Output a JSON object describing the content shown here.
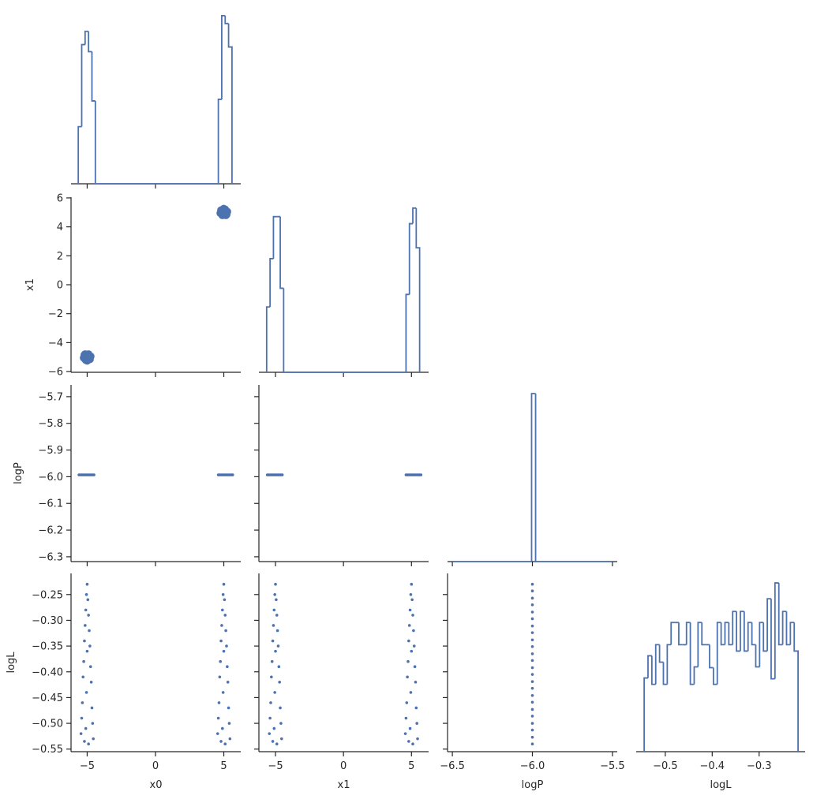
{
  "chart_data": [
    {
      "type": "histogram",
      "color": "#4c72b0",
      "ylim": [
        0,
        225
      ],
      "bins": [
        -5.65,
        -5.4,
        -5.15,
        -4.9,
        -4.65,
        -4.4,
        -4.15,
        -3.9,
        -3.65,
        -3.4,
        -3.15,
        -2.9,
        -2.65,
        -2.4,
        -2.15,
        -1.9,
        -1.65,
        -1.4,
        -1.15,
        -0.9,
        -0.65,
        -0.4,
        -0.15,
        0.1,
        0.35,
        0.6,
        0.85,
        1.1,
        1.35,
        1.6,
        1.85,
        2.1,
        2.35,
        2.6,
        2.85,
        3.1,
        3.35,
        3.6,
        3.85,
        4.1,
        4.35,
        4.6,
        4.85,
        5.1,
        5.35,
        5.6
      ],
      "counts": [
        73,
        178,
        195,
        169,
        106,
        0,
        0,
        0,
        0,
        0,
        0,
        0,
        0,
        0,
        0,
        0,
        0,
        0,
        0,
        0,
        0,
        0,
        0,
        0,
        0,
        0,
        0,
        0,
        0,
        0,
        0,
        0,
        0,
        0,
        0,
        0,
        0,
        0,
        0,
        0,
        0,
        108,
        215,
        205,
        175
      ]
    },
    {
      "type": "scatter",
      "color": "#4c72b0",
      "ylabel": "x1",
      "ylim": [
        -6.05,
        6.05
      ],
      "yticks": [
        {
          "value": -6,
          "label": "−6"
        },
        {
          "value": -4,
          "label": "−4"
        },
        {
          "value": -2,
          "label": "−2"
        },
        0,
        2,
        4,
        6
      ],
      "x": [
        -5.0,
        -5.2,
        -4.8,
        -5.1,
        -4.9,
        -5.25,
        -4.75,
        -5.0,
        -5.15,
        -4.85,
        -5.05,
        -4.95,
        5.0,
        5.2,
        4.8,
        5.1,
        4.9,
        5.25,
        4.75,
        5.0,
        5.15,
        4.85,
        5.05,
        4.95
      ],
      "y": [
        -5.0,
        -4.85,
        -5.15,
        -5.2,
        -4.8,
        -5.05,
        -4.95,
        -5.25,
        -4.8,
        -5.1,
        -4.9,
        -5.05,
        5.0,
        4.85,
        5.15,
        5.2,
        4.8,
        5.05,
        4.95,
        5.25,
        4.8,
        5.1,
        4.9,
        5.05
      ]
    },
    {
      "type": "histogram",
      "color": "#4c72b0",
      "ylim": [
        0,
        225
      ],
      "bins": [
        -5.65,
        -5.4,
        -5.15,
        -4.9,
        -4.65,
        -4.4,
        -4.15,
        -3.9,
        -3.65,
        -3.4,
        -3.15,
        -2.9,
        -2.65,
        -2.4,
        -2.15,
        -1.9,
        -1.65,
        -1.4,
        -1.15,
        -0.9,
        -0.65,
        -0.4,
        -0.15,
        0.1,
        0.35,
        0.6,
        0.85,
        1.1,
        1.35,
        1.6,
        1.85,
        2.1,
        2.35,
        2.6,
        2.85,
        3.1,
        3.35,
        3.6,
        3.85,
        4.1,
        4.35,
        4.6,
        4.85,
        5.1,
        5.35,
        5.6
      ],
      "counts": [
        84,
        146,
        200,
        200,
        108,
        0,
        0,
        0,
        0,
        0,
        0,
        0,
        0,
        0,
        0,
        0,
        0,
        0,
        0,
        0,
        0,
        0,
        0,
        0,
        0,
        0,
        0,
        0,
        0,
        0,
        0,
        0,
        0,
        0,
        0,
        0,
        0,
        0,
        0,
        0,
        0,
        100,
        191,
        211,
        160
      ]
    },
    {
      "type": "scatter",
      "color": "#4c72b0",
      "ylabel": "logP",
      "ylim": [
        -6.318,
        -5.656
      ],
      "yticks": [
        {
          "value": -6.3,
          "label": "−6.3"
        },
        {
          "value": -6.2,
          "label": "−6.2"
        },
        {
          "value": -6.1,
          "label": "−6.1"
        },
        {
          "value": -6.0,
          "label": "−6.0"
        },
        {
          "value": -5.9,
          "label": "−5.9"
        },
        {
          "value": -5.8,
          "label": "−5.8"
        },
        {
          "value": -5.7,
          "label": "−5.7"
        }
      ],
      "x": [
        -5.6,
        -5.5,
        -5.4,
        -5.3,
        -5.2,
        -5.1,
        -5.0,
        -4.9,
        -4.8,
        -4.7,
        -4.6,
        -4.5,
        4.6,
        4.7,
        4.8,
        4.9,
        5.0,
        5.1,
        5.2,
        5.3,
        5.4,
        5.5,
        5.6,
        5.65
      ],
      "y": [
        -5.993,
        -5.993,
        -5.993,
        -5.993,
        -5.993,
        -5.993,
        -5.993,
        -5.993,
        -5.993,
        -5.993,
        -5.993,
        -5.993,
        -5.993,
        -5.993,
        -5.993,
        -5.993,
        -5.993,
        -5.993,
        -5.993,
        -5.993,
        -5.993,
        -5.993,
        -5.993,
        -5.993
      ]
    },
    {
      "type": "scatter",
      "color": "#4c72b0",
      "x": [
        -5.6,
        -5.5,
        -5.4,
        -5.3,
        -5.2,
        -5.1,
        -5.0,
        -4.9,
        -4.8,
        -4.7,
        -4.6,
        -4.5,
        4.6,
        4.7,
        4.8,
        4.9,
        5.0,
        5.1,
        5.2,
        5.3,
        5.4,
        5.5,
        5.6,
        5.7
      ],
      "y": [
        -5.993,
        -5.993,
        -5.993,
        -5.993,
        -5.993,
        -5.993,
        -5.993,
        -5.993,
        -5.993,
        -5.993,
        -5.993,
        -5.993,
        -5.993,
        -5.993,
        -5.993,
        -5.993,
        -5.993,
        -5.993,
        -5.993,
        -5.993,
        -5.993,
        -5.993,
        -5.993,
        -5.993
      ]
    },
    {
      "type": "histogram",
      "color": "#4c72b0",
      "ylim": [
        0,
        224
      ],
      "bins": [
        -6.5,
        -6.005,
        -5.98,
        -5.5
      ],
      "counts": [
        0,
        213,
        0
      ]
    },
    {
      "type": "scatter",
      "color": "#4c72b0",
      "xlabel": "x0",
      "ylabel": "logL",
      "xlim": [
        -6.18,
        6.24
      ],
      "xticks": [
        {
          "value": -5,
          "label": "−5"
        },
        0,
        5
      ],
      "ylim": [
        -0.555,
        -0.209
      ],
      "yticks": [
        {
          "value": -0.55,
          "label": "−0.55"
        },
        {
          "value": -0.5,
          "label": "−0.50"
        },
        {
          "value": -0.45,
          "label": "−0.45"
        },
        {
          "value": -0.4,
          "label": "−0.40"
        },
        {
          "value": -0.35,
          "label": "−0.35"
        },
        {
          "value": -0.3,
          "label": "−0.30"
        },
        {
          "value": -0.25,
          "label": "−0.25"
        }
      ],
      "x": [
        -5.0,
        -5.05,
        -4.95,
        -5.1,
        -4.9,
        -5.15,
        -4.85,
        -5.2,
        -4.8,
        -5.0,
        -5.25,
        -4.75,
        -5.3,
        -4.7,
        -5.05,
        -5.35,
        -4.65,
        -5.4,
        -4.6,
        -5.1,
        -5.45,
        -4.55,
        -4.9,
        -5.2,
        5.0,
        4.95,
        5.05,
        4.9,
        5.1,
        4.85,
        5.15,
        4.8,
        5.2,
        5.0,
        4.75,
        5.25,
        4.7,
        5.3,
        4.95,
        4.65,
        5.35,
        4.6,
        5.4,
        4.9,
        4.55,
        5.45,
        5.1,
        4.8
      ],
      "y": [
        -0.23,
        -0.25,
        -0.26,
        -0.28,
        -0.29,
        -0.31,
        -0.32,
        -0.34,
        -0.35,
        -0.36,
        -0.38,
        -0.39,
        -0.41,
        -0.42,
        -0.44,
        -0.46,
        -0.47,
        -0.49,
        -0.5,
        -0.51,
        -0.52,
        -0.53,
        -0.54,
        -0.535,
        -0.23,
        -0.25,
        -0.26,
        -0.28,
        -0.29,
        -0.31,
        -0.32,
        -0.34,
        -0.35,
        -0.36,
        -0.38,
        -0.39,
        -0.41,
        -0.42,
        -0.44,
        -0.46,
        -0.47,
        -0.49,
        -0.5,
        -0.51,
        -0.52,
        -0.53,
        -0.54,
        -0.535
      ]
    },
    {
      "type": "scatter",
      "color": "#4c72b0",
      "xlabel": "x1",
      "xlim": [
        -6.22,
        6.26
      ],
      "xticks": [
        {
          "value": -5,
          "label": "−5"
        },
        0,
        5
      ],
      "x": [
        -5.0,
        -5.05,
        -4.95,
        -5.1,
        -4.9,
        -5.15,
        -4.85,
        -5.2,
        -4.8,
        -5.0,
        -5.25,
        -4.75,
        -5.3,
        -4.7,
        -5.05,
        -5.35,
        -4.65,
        -5.4,
        -4.6,
        -5.1,
        -5.45,
        -4.55,
        -4.9,
        -5.2,
        5.0,
        4.95,
        5.05,
        4.9,
        5.1,
        4.85,
        5.15,
        4.8,
        5.2,
        5.0,
        4.75,
        5.25,
        4.7,
        5.3,
        4.95,
        4.65,
        5.35,
        4.6,
        5.4,
        4.9,
        4.55,
        5.45,
        5.1,
        4.8
      ],
      "y": [
        -0.23,
        -0.25,
        -0.26,
        -0.28,
        -0.29,
        -0.31,
        -0.32,
        -0.34,
        -0.35,
        -0.36,
        -0.38,
        -0.39,
        -0.41,
        -0.42,
        -0.44,
        -0.46,
        -0.47,
        -0.49,
        -0.5,
        -0.51,
        -0.52,
        -0.53,
        -0.54,
        -0.535,
        -0.23,
        -0.25,
        -0.26,
        -0.28,
        -0.29,
        -0.31,
        -0.32,
        -0.34,
        -0.35,
        -0.36,
        -0.38,
        -0.39,
        -0.41,
        -0.42,
        -0.44,
        -0.46,
        -0.47,
        -0.49,
        -0.5,
        -0.51,
        -0.52,
        -0.53,
        -0.54,
        -0.535
      ]
    },
    {
      "type": "scatter",
      "color": "#4c72b0",
      "xlabel": "logP",
      "xlim": [
        -6.53,
        -5.47
      ],
      "xticks": [
        {
          "value": -6.5,
          "label": "−6.5"
        },
        {
          "value": -6.0,
          "label": "−6.0"
        },
        {
          "value": -5.5,
          "label": "−5.5"
        }
      ],
      "x": [
        -6.0,
        -6.0,
        -6.0,
        -6.0,
        -6.0,
        -6.0,
        -6.0,
        -6.0,
        -6.0,
        -6.0,
        -6.0,
        -6.0,
        -6.0,
        -6.0,
        -6.0,
        -6.0,
        -6.0,
        -6.0,
        -6.0,
        -6.0,
        -6.0,
        -6.0,
        -6.0,
        -6.0
      ],
      "y": [
        -0.23,
        -0.243,
        -0.257,
        -0.27,
        -0.284,
        -0.297,
        -0.311,
        -0.324,
        -0.338,
        -0.351,
        -0.365,
        -0.378,
        -0.392,
        -0.405,
        -0.419,
        -0.432,
        -0.446,
        -0.459,
        -0.473,
        -0.486,
        -0.5,
        -0.513,
        -0.527,
        -0.54
      ]
    },
    {
      "type": "histogram",
      "color": "#4c72b0",
      "xlabel": "logL",
      "ylim": [
        0,
        225
      ],
      "xlim": [
        -0.562,
        -0.202
      ],
      "xticks": [
        {
          "value": -0.5,
          "label": "−0.5"
        },
        {
          "value": -0.4,
          "label": "−0.4"
        },
        {
          "value": -0.3,
          "label": "−0.3"
        }
      ],
      "bins": [
        -0.545,
        -0.5368,
        -0.5286,
        -0.5204,
        -0.5122,
        -0.504,
        -0.4958,
        -0.4876,
        -0.4794,
        -0.4712,
        -0.463,
        -0.4548,
        -0.4466,
        -0.4384,
        -0.4302,
        -0.422,
        -0.4138,
        -0.4056,
        -0.3974,
        -0.3892,
        -0.381,
        -0.3728,
        -0.3646,
        -0.3564,
        -0.3482,
        -0.34,
        -0.3318,
        -0.3236,
        -0.3154,
        -0.3072,
        -0.299,
        -0.2908,
        -0.2826,
        -0.2744,
        -0.2662,
        -0.258,
        -0.2498,
        -0.2416,
        -0.2334,
        -0.2252,
        -0.217
      ],
      "counts": [
        93,
        121,
        85,
        135,
        113,
        85,
        135,
        163,
        163,
        135,
        135,
        163,
        85,
        107,
        163,
        135,
        135,
        106,
        85,
        163,
        135,
        163,
        135,
        177,
        127,
        177,
        127,
        163,
        135,
        107,
        163,
        127,
        193,
        92,
        213,
        135,
        177,
        135,
        163,
        127
      ]
    }
  ]
}
